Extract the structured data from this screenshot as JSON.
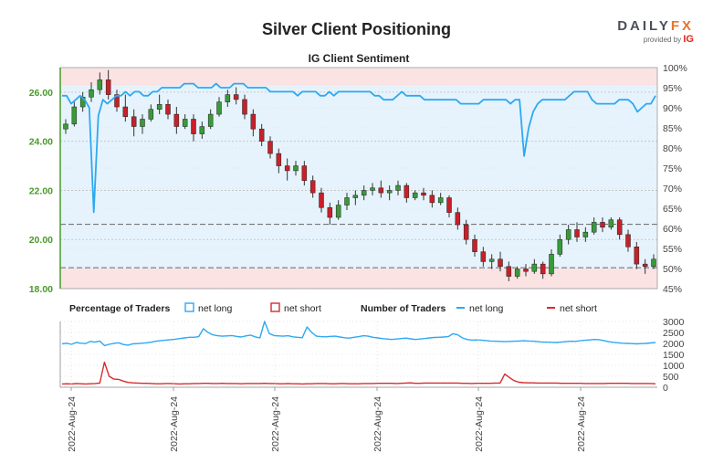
{
  "title": "Silver Client Positioning",
  "brand": {
    "name_part1": "DAILY",
    "name_part2": "FX",
    "provided_by": "provided by",
    "ig": "IG"
  },
  "colors": {
    "net_long": "#2da9f2",
    "net_short": "#d62c2c",
    "candle_up": "#3a9a3a",
    "candle_down": "#c8202a",
    "long_fill": "#e6f3fc",
    "short_fill": "#fbe3e3",
    "left_axis": "#4a9a2a",
    "grid": "#bfbfbf"
  },
  "chart_data": [
    {
      "id": "main",
      "type": "line",
      "title": "IG Client Sentiment",
      "left_axis": {
        "ticks": [
          "18.00",
          "20.00",
          "22.00",
          "24.00",
          "26.00"
        ],
        "range": [
          18.0,
          27.0
        ]
      },
      "right_axis": {
        "ticks": [
          "45%",
          "50%",
          "55%",
          "60%",
          "65%",
          "70%",
          "75%",
          "80%",
          "85%",
          "90%",
          "95%",
          "100%"
        ],
        "range": [
          45,
          100
        ]
      },
      "reference_lines": {
        "price": 18.85,
        "sentiment": 61
      },
      "candles": [
        [
          24.5,
          24.9,
          24.3,
          24.7
        ],
        [
          24.7,
          25.6,
          24.6,
          25.4
        ],
        [
          25.4,
          26.0,
          25.2,
          25.8
        ],
        [
          25.8,
          26.4,
          25.6,
          26.1
        ],
        [
          26.1,
          26.8,
          25.9,
          26.5
        ],
        [
          26.5,
          26.9,
          25.7,
          25.9
        ],
        [
          25.9,
          26.1,
          25.2,
          25.4
        ],
        [
          25.4,
          25.9,
          24.8,
          25.0
        ],
        [
          25.0,
          25.3,
          24.2,
          24.6
        ],
        [
          24.6,
          25.1,
          24.3,
          24.9
        ],
        [
          24.9,
          25.5,
          24.8,
          25.3
        ],
        [
          25.3,
          25.9,
          25.1,
          25.5
        ],
        [
          25.5,
          25.7,
          24.9,
          25.1
        ],
        [
          25.1,
          25.4,
          24.3,
          24.6
        ],
        [
          24.6,
          25.1,
          24.5,
          24.9
        ],
        [
          24.9,
          25.1,
          24.0,
          24.3
        ],
        [
          24.3,
          24.8,
          24.1,
          24.6
        ],
        [
          24.6,
          25.3,
          24.5,
          25.1
        ],
        [
          25.1,
          25.8,
          25.0,
          25.6
        ],
        [
          25.6,
          26.1,
          25.4,
          25.9
        ],
        [
          25.9,
          26.2,
          25.5,
          25.7
        ],
        [
          25.7,
          25.9,
          24.9,
          25.1
        ],
        [
          25.1,
          25.3,
          24.2,
          24.5
        ],
        [
          24.5,
          24.7,
          23.8,
          24.0
        ],
        [
          24.0,
          24.2,
          23.3,
          23.5
        ],
        [
          23.5,
          23.7,
          22.7,
          23.0
        ],
        [
          23.0,
          23.3,
          22.4,
          22.8
        ],
        [
          22.8,
          23.2,
          22.6,
          23.0
        ],
        [
          23.0,
          23.2,
          22.2,
          22.4
        ],
        [
          22.4,
          22.6,
          21.7,
          21.9
        ],
        [
          21.9,
          22.1,
          21.1,
          21.3
        ],
        [
          21.3,
          21.5,
          20.6,
          20.9
        ],
        [
          20.9,
          21.6,
          20.8,
          21.4
        ],
        [
          21.4,
          21.9,
          21.2,
          21.7
        ],
        [
          21.7,
          22.0,
          21.4,
          21.8
        ],
        [
          21.8,
          22.2,
          21.6,
          22.0
        ],
        [
          22.0,
          22.3,
          21.8,
          22.1
        ],
        [
          22.1,
          22.4,
          21.7,
          21.9
        ],
        [
          21.9,
          22.2,
          21.6,
          22.0
        ],
        [
          22.0,
          22.4,
          21.8,
          22.2
        ],
        [
          22.2,
          22.3,
          21.5,
          21.7
        ],
        [
          21.7,
          22.0,
          21.6,
          21.9
        ],
        [
          21.9,
          22.1,
          21.6,
          21.8
        ],
        [
          21.8,
          22.0,
          21.3,
          21.5
        ],
        [
          21.5,
          21.9,
          21.4,
          21.7
        ],
        [
          21.7,
          21.8,
          20.9,
          21.1
        ],
        [
          21.1,
          21.3,
          20.4,
          20.6
        ],
        [
          20.6,
          20.8,
          19.8,
          20.0
        ],
        [
          20.0,
          20.2,
          19.3,
          19.5
        ],
        [
          19.5,
          19.7,
          18.9,
          19.1
        ],
        [
          19.1,
          19.4,
          18.8,
          19.2
        ],
        [
          19.2,
          19.5,
          18.7,
          18.9
        ],
        [
          18.9,
          19.1,
          18.3,
          18.5
        ],
        [
          18.5,
          18.9,
          18.4,
          18.8
        ],
        [
          18.8,
          19.0,
          18.5,
          18.7
        ],
        [
          18.7,
          19.2,
          18.6,
          19.0
        ],
        [
          19.0,
          19.1,
          18.4,
          18.6
        ],
        [
          18.6,
          19.6,
          18.5,
          19.4
        ],
        [
          19.4,
          20.2,
          19.3,
          20.0
        ],
        [
          20.0,
          20.6,
          19.8,
          20.4
        ],
        [
          20.4,
          20.7,
          19.9,
          20.1
        ],
        [
          20.1,
          20.5,
          19.9,
          20.3
        ],
        [
          20.3,
          20.9,
          20.2,
          20.7
        ],
        [
          20.7,
          20.9,
          20.3,
          20.5
        ],
        [
          20.5,
          20.9,
          20.4,
          20.8
        ],
        [
          20.8,
          20.9,
          20.0,
          20.2
        ],
        [
          20.2,
          20.4,
          19.5,
          19.7
        ],
        [
          19.7,
          19.9,
          18.8,
          19.0
        ],
        [
          19.0,
          19.2,
          18.6,
          18.9
        ],
        [
          18.9,
          19.4,
          18.8,
          19.2
        ]
      ],
      "net_long_pct": [
        93,
        93,
        91,
        92,
        93,
        92,
        90,
        64,
        88,
        92,
        91,
        92,
        93,
        93,
        94,
        93,
        94,
        94,
        93,
        93,
        94,
        94,
        95,
        95,
        95,
        95,
        95,
        96,
        96,
        96,
        95,
        95,
        95,
        95,
        96,
        95,
        95,
        95,
        96,
        96,
        96,
        95,
        95,
        95,
        95,
        95,
        94,
        94,
        94,
        94,
        94,
        94,
        93,
        94,
        94,
        94,
        94,
        93,
        93,
        94,
        93,
        94,
        94,
        94,
        94,
        94,
        94,
        94,
        94,
        93,
        93,
        92,
        92,
        92,
        93,
        94,
        93,
        93,
        93,
        93,
        92,
        92,
        92,
        92,
        92,
        92,
        92,
        92,
        91,
        91,
        91,
        91,
        91,
        92,
        92,
        92,
        92,
        92,
        92,
        91,
        92,
        92,
        78,
        85,
        89,
        91,
        92,
        92,
        92,
        92,
        92,
        92,
        93,
        94,
        94,
        94,
        94,
        92,
        91,
        91,
        91,
        91,
        91,
        92,
        92,
        92,
        91,
        89,
        90,
        91,
        91,
        93
      ]
    },
    {
      "id": "bottom",
      "type": "line",
      "right_axis": {
        "ticks": [
          "0",
          "500",
          "1000",
          "1500",
          "2000",
          "2500",
          "3000"
        ],
        "range": [
          0,
          3000
        ]
      },
      "x_tick_labels": [
        "2022-Aug-24",
        "2022-Aug-24",
        "2022-Aug-24",
        "2022-Aug-24",
        "2022-Aug-24",
        "2022-Aug-24"
      ],
      "legend": {
        "pct_heading": "Percentage of Traders",
        "pct_long": "net long",
        "pct_short": "net short",
        "num_heading": "Number of Traders",
        "num_long": "net long",
        "num_short": "net short"
      },
      "series": [
        {
          "name": "net long",
          "values": [
            1980,
            2010,
            1960,
            2040,
            2010,
            1990,
            2090,
            2060,
            2110,
            1900,
            1960,
            2000,
            2030,
            1950,
            1920,
            1980,
            1990,
            2010,
            2030,
            2060,
            2100,
            2130,
            2150,
            2170,
            2190,
            2220,
            2250,
            2280,
            2280,
            2310,
            2670,
            2500,
            2390,
            2350,
            2330,
            2340,
            2360,
            2320,
            2290,
            2340,
            2380,
            2300,
            2250,
            3000,
            2450,
            2360,
            2340,
            2330,
            2350,
            2300,
            2280,
            2260,
            2750,
            2500,
            2330,
            2310,
            2300,
            2320,
            2330,
            2290,
            2260,
            2240,
            2280,
            2310,
            2350,
            2330,
            2280,
            2250,
            2220,
            2200,
            2180,
            2200,
            2220,
            2240,
            2210,
            2180,
            2200,
            2220,
            2250,
            2270,
            2280,
            2290,
            2310,
            2440,
            2390,
            2250,
            2180,
            2150,
            2160,
            2150,
            2130,
            2110,
            2100,
            2090,
            2080,
            2090,
            2100,
            2110,
            2120,
            2110,
            2100,
            2080,
            2060,
            2060,
            2050,
            2040,
            2060,
            2080,
            2100,
            2090,
            2120,
            2140,
            2160,
            2180,
            2170,
            2130,
            2080,
            2050,
            2030,
            2010,
            2000,
            1990,
            1980,
            1990,
            2000,
            2020,
            2040
          ]
        },
        {
          "name": "net short",
          "values": [
            150,
            160,
            150,
            170,
            160,
            150,
            160,
            170,
            190,
            1140,
            500,
            370,
            360,
            280,
            220,
            200,
            190,
            180,
            180,
            170,
            160,
            160,
            170,
            170,
            160,
            150,
            160,
            160,
            170,
            170,
            180,
            180,
            170,
            170,
            180,
            170,
            170,
            170,
            160,
            170,
            170,
            170,
            170,
            180,
            170,
            170,
            160,
            160,
            170,
            160,
            160,
            150,
            160,
            160,
            170,
            170,
            170,
            160,
            160,
            170,
            170,
            160,
            160,
            160,
            170,
            170,
            170,
            180,
            180,
            180,
            180,
            170,
            180,
            190,
            200,
            180,
            180,
            190,
            190,
            190,
            190,
            190,
            190,
            190,
            190,
            180,
            180,
            170,
            180,
            180,
            180,
            180,
            190,
            190,
            600,
            440,
            300,
            230,
            210,
            200,
            200,
            190,
            190,
            190,
            190,
            190,
            180,
            180,
            180,
            180,
            180,
            170,
            170,
            170,
            170,
            170,
            180,
            180,
            180,
            180,
            180,
            170,
            170,
            170,
            170,
            170,
            160
          ]
        }
      ]
    }
  ]
}
